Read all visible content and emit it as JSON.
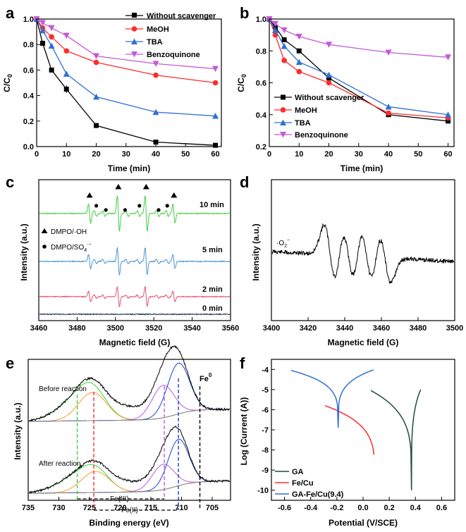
{
  "colors": {
    "black": "#000000",
    "red": "#ff2b2b",
    "blue": "#2f6fd6",
    "magenta": "#c45ad8",
    "green": "#3fcf3f",
    "lightblue": "#4a94d4",
    "pink": "#e8506a",
    "navy": "#1b2a52",
    "darkgreen": "#1e4a40",
    "orange": "#ff9a2a",
    "purple": "#b95ae0",
    "gray": "#8a8a8a",
    "dblue": "#2040d0"
  },
  "chart_data": [
    {
      "panel": "a",
      "type": "line",
      "xlabel": "Time (min)",
      "ylabel": "C/C0",
      "xlim": [
        0,
        62
      ],
      "ylim": [
        0,
        1.0
      ],
      "x_ticks": [
        "0",
        "10",
        "20",
        "30",
        "40",
        "50",
        "60"
      ],
      "y_ticks": [
        "0.0",
        "0.2",
        "0.4",
        "0.6",
        "0.8",
        "1.0"
      ],
      "legend_position": "top-right",
      "series": [
        {
          "name": "Without scavenger",
          "color": "#000000",
          "marker": "square",
          "x": [
            0,
            2,
            5,
            10,
            20,
            40,
            60
          ],
          "y": [
            1.0,
            0.81,
            0.6,
            0.45,
            0.165,
            0.035,
            0.01
          ]
        },
        {
          "name": "MeOH",
          "color": "#ff2b2b",
          "marker": "circle",
          "x": [
            0,
            2,
            5,
            10,
            20,
            40,
            60
          ],
          "y": [
            1.0,
            0.93,
            0.86,
            0.75,
            0.66,
            0.56,
            0.5
          ]
        },
        {
          "name": "TBA",
          "color": "#2f6fd6",
          "marker": "triangle-up",
          "x": [
            0,
            2,
            5,
            10,
            20,
            40,
            60
          ],
          "y": [
            1.0,
            0.91,
            0.79,
            0.57,
            0.39,
            0.27,
            0.24
          ]
        },
        {
          "name": "Benzoquinone",
          "color": "#c45ad8",
          "marker": "triangle-down",
          "x": [
            0,
            2,
            5,
            10,
            20,
            40,
            60
          ],
          "y": [
            1.0,
            0.97,
            0.93,
            0.87,
            0.71,
            0.65,
            0.61
          ]
        }
      ]
    },
    {
      "panel": "b",
      "type": "line",
      "xlabel": "Time (min)",
      "ylabel": "C/C0",
      "xlim": [
        0,
        62
      ],
      "ylim": [
        0.2,
        1.0
      ],
      "x_ticks": [
        "0",
        "10",
        "20",
        "30",
        "40",
        "50",
        "60"
      ],
      "y_ticks": [
        "0.2",
        "0.4",
        "0.6",
        "0.8",
        "1.0"
      ],
      "legend_position": "bottom-left",
      "series": [
        {
          "name": "Without scavenger",
          "color": "#000000",
          "marker": "square",
          "x": [
            0,
            2,
            5,
            10,
            20,
            40,
            60
          ],
          "y": [
            1.0,
            0.95,
            0.87,
            0.8,
            0.63,
            0.4,
            0.36
          ]
        },
        {
          "name": "MeOH",
          "color": "#ff2b2b",
          "marker": "circle",
          "x": [
            0,
            2,
            5,
            10,
            20,
            40,
            60
          ],
          "y": [
            1.0,
            0.9,
            0.74,
            0.67,
            0.6,
            0.41,
            0.38
          ]
        },
        {
          "name": "TBA",
          "color": "#2f6fd6",
          "marker": "triangle-up",
          "x": [
            0,
            2,
            5,
            10,
            20,
            40,
            60
          ],
          "y": [
            1.0,
            0.93,
            0.83,
            0.73,
            0.65,
            0.45,
            0.4
          ]
        },
        {
          "name": "Benzoquinone",
          "color": "#c45ad8",
          "marker": "triangle-down",
          "x": [
            0,
            2,
            5,
            10,
            20,
            40,
            60
          ],
          "y": [
            1.0,
            0.97,
            0.93,
            0.89,
            0.84,
            0.79,
            0.76
          ]
        }
      ]
    },
    {
      "panel": "c",
      "type": "line",
      "xlabel": "Magnetic field (G)",
      "ylabel": "Intensity (a.u.)",
      "xlim": [
        3460,
        3560
      ],
      "x_ticks": [
        "3460",
        "3480",
        "3500",
        "3520",
        "3540",
        "3560"
      ],
      "series": [
        {
          "name": "10 min",
          "color": "#3fcf3f",
          "amplitude": 1.0
        },
        {
          "name": "5 min",
          "color": "#4a94d4",
          "amplitude": 0.75
        },
        {
          "name": "2 min",
          "color": "#e8506a",
          "amplitude": 0.55
        },
        {
          "name": "0 min",
          "color": "#1b2a52",
          "amplitude": 0.0
        }
      ],
      "annotations": {
        "triangle": "DMPO/·OH",
        "dot": "DMPO/SO4·−"
      }
    },
    {
      "panel": "d",
      "type": "line",
      "xlabel": "Magnetic field (G)",
      "ylabel": "Intensity (a.u.)",
      "xlim": [
        3400,
        3500
      ],
      "x_ticks": [
        "3400",
        "3420",
        "3440",
        "3460",
        "3480",
        "3500"
      ],
      "annotation": "·O2−"
    },
    {
      "panel": "e",
      "type": "line",
      "xlabel": "Binding energy (eV)",
      "ylabel": "Intensity (a.u.)",
      "xlim": [
        735,
        702
      ],
      "x_ticks": [
        "735",
        "730",
        "725",
        "720",
        "715",
        "710",
        "705"
      ],
      "annotations": {
        "top": "Before reaction",
        "bottom": "After reaction",
        "fe0": "Fe0",
        "fe3": "Fe(III)",
        "fe2": "Fe(II)"
      }
    },
    {
      "panel": "f",
      "type": "line",
      "xlabel": "Potential (V/SCE)",
      "ylabel": "Log (Current (A))",
      "xlim": [
        -0.7,
        0.7
      ],
      "ylim": [
        -10.5,
        -3.5
      ],
      "x_ticks": [
        "-0.6",
        "-0.4",
        "-0.2",
        "0.0",
        "0.2",
        "0.4",
        "0.6"
      ],
      "y_ticks": [
        "-10",
        "-9",
        "-8",
        "-7",
        "-6",
        "-5",
        "-4"
      ],
      "legend_position": "bottom-right",
      "series": [
        {
          "name": "GA",
          "color": "#1e4a40",
          "ecorr": 0.37,
          "left": [
            0.06,
            -5.05
          ],
          "right": [
            0.44,
            -5.0
          ],
          "min": -10.0
        },
        {
          "name": "Fe/Cu",
          "color": "#ff2b2b",
          "ecorr": 0.09,
          "left": [
            -0.29,
            -5.8
          ],
          "right": [
            0.2,
            -5.15
          ],
          "min": -9.9
        },
        {
          "name": "GA-Fe/Cu(9.4)",
          "color": "#2f6fd6",
          "ecorr": -0.19,
          "left": [
            -0.55,
            -4.05
          ],
          "right": [
            0.08,
            -4.02
          ],
          "min": -6.9
        }
      ]
    }
  ],
  "panels": {
    "a": {
      "letter": "a",
      "xlabel": "Time (min)",
      "ylabel_main": "C/C",
      "ylabel_sub": "0",
      "legend": [
        "Without scavenger",
        "MeOH",
        "TBA",
        "Benzoquinone"
      ]
    },
    "b": {
      "letter": "b",
      "xlabel": "Time (min)",
      "ylabel_main": "C/C",
      "ylabel_sub": "0",
      "legend": [
        "Without scavenger",
        "MeOH",
        "TBA",
        "Benzoquinone"
      ]
    },
    "c": {
      "letter": "c",
      "xlabel": "Magnetic field (G)",
      "ylabel": "Intensity (a.u.)",
      "labels": [
        "10 min",
        "5 min",
        "2 min",
        "0 min"
      ],
      "legend_oh": "DMPO/·OH",
      "legend_so4_main": "DMPO/SO",
      "legend_so4_sub": "4",
      "legend_so4_sup": "·−"
    },
    "d": {
      "letter": "d",
      "xlabel": "Magnetic field (G)",
      "ylabel": "Intensity (a.u.)",
      "annot_main": "·O",
      "annot_sub": "2",
      "annot_sup": "−"
    },
    "e": {
      "letter": "e",
      "xlabel": "Binding energy (eV)",
      "ylabel": "Intensity (a.u.)",
      "before": "Before reaction",
      "after": "After reaction",
      "fe0_main": "Fe",
      "fe0_sup": "0",
      "fe3": "Fe(III)",
      "fe2": "Fe(II)"
    },
    "f": {
      "letter": "f",
      "xlabel": "Potential (V/SCE)",
      "ylabel": "Log (Current (A))",
      "legend": [
        "GA",
        "Fe/Cu",
        "GA-Fe/Cu(9.4)"
      ]
    }
  }
}
